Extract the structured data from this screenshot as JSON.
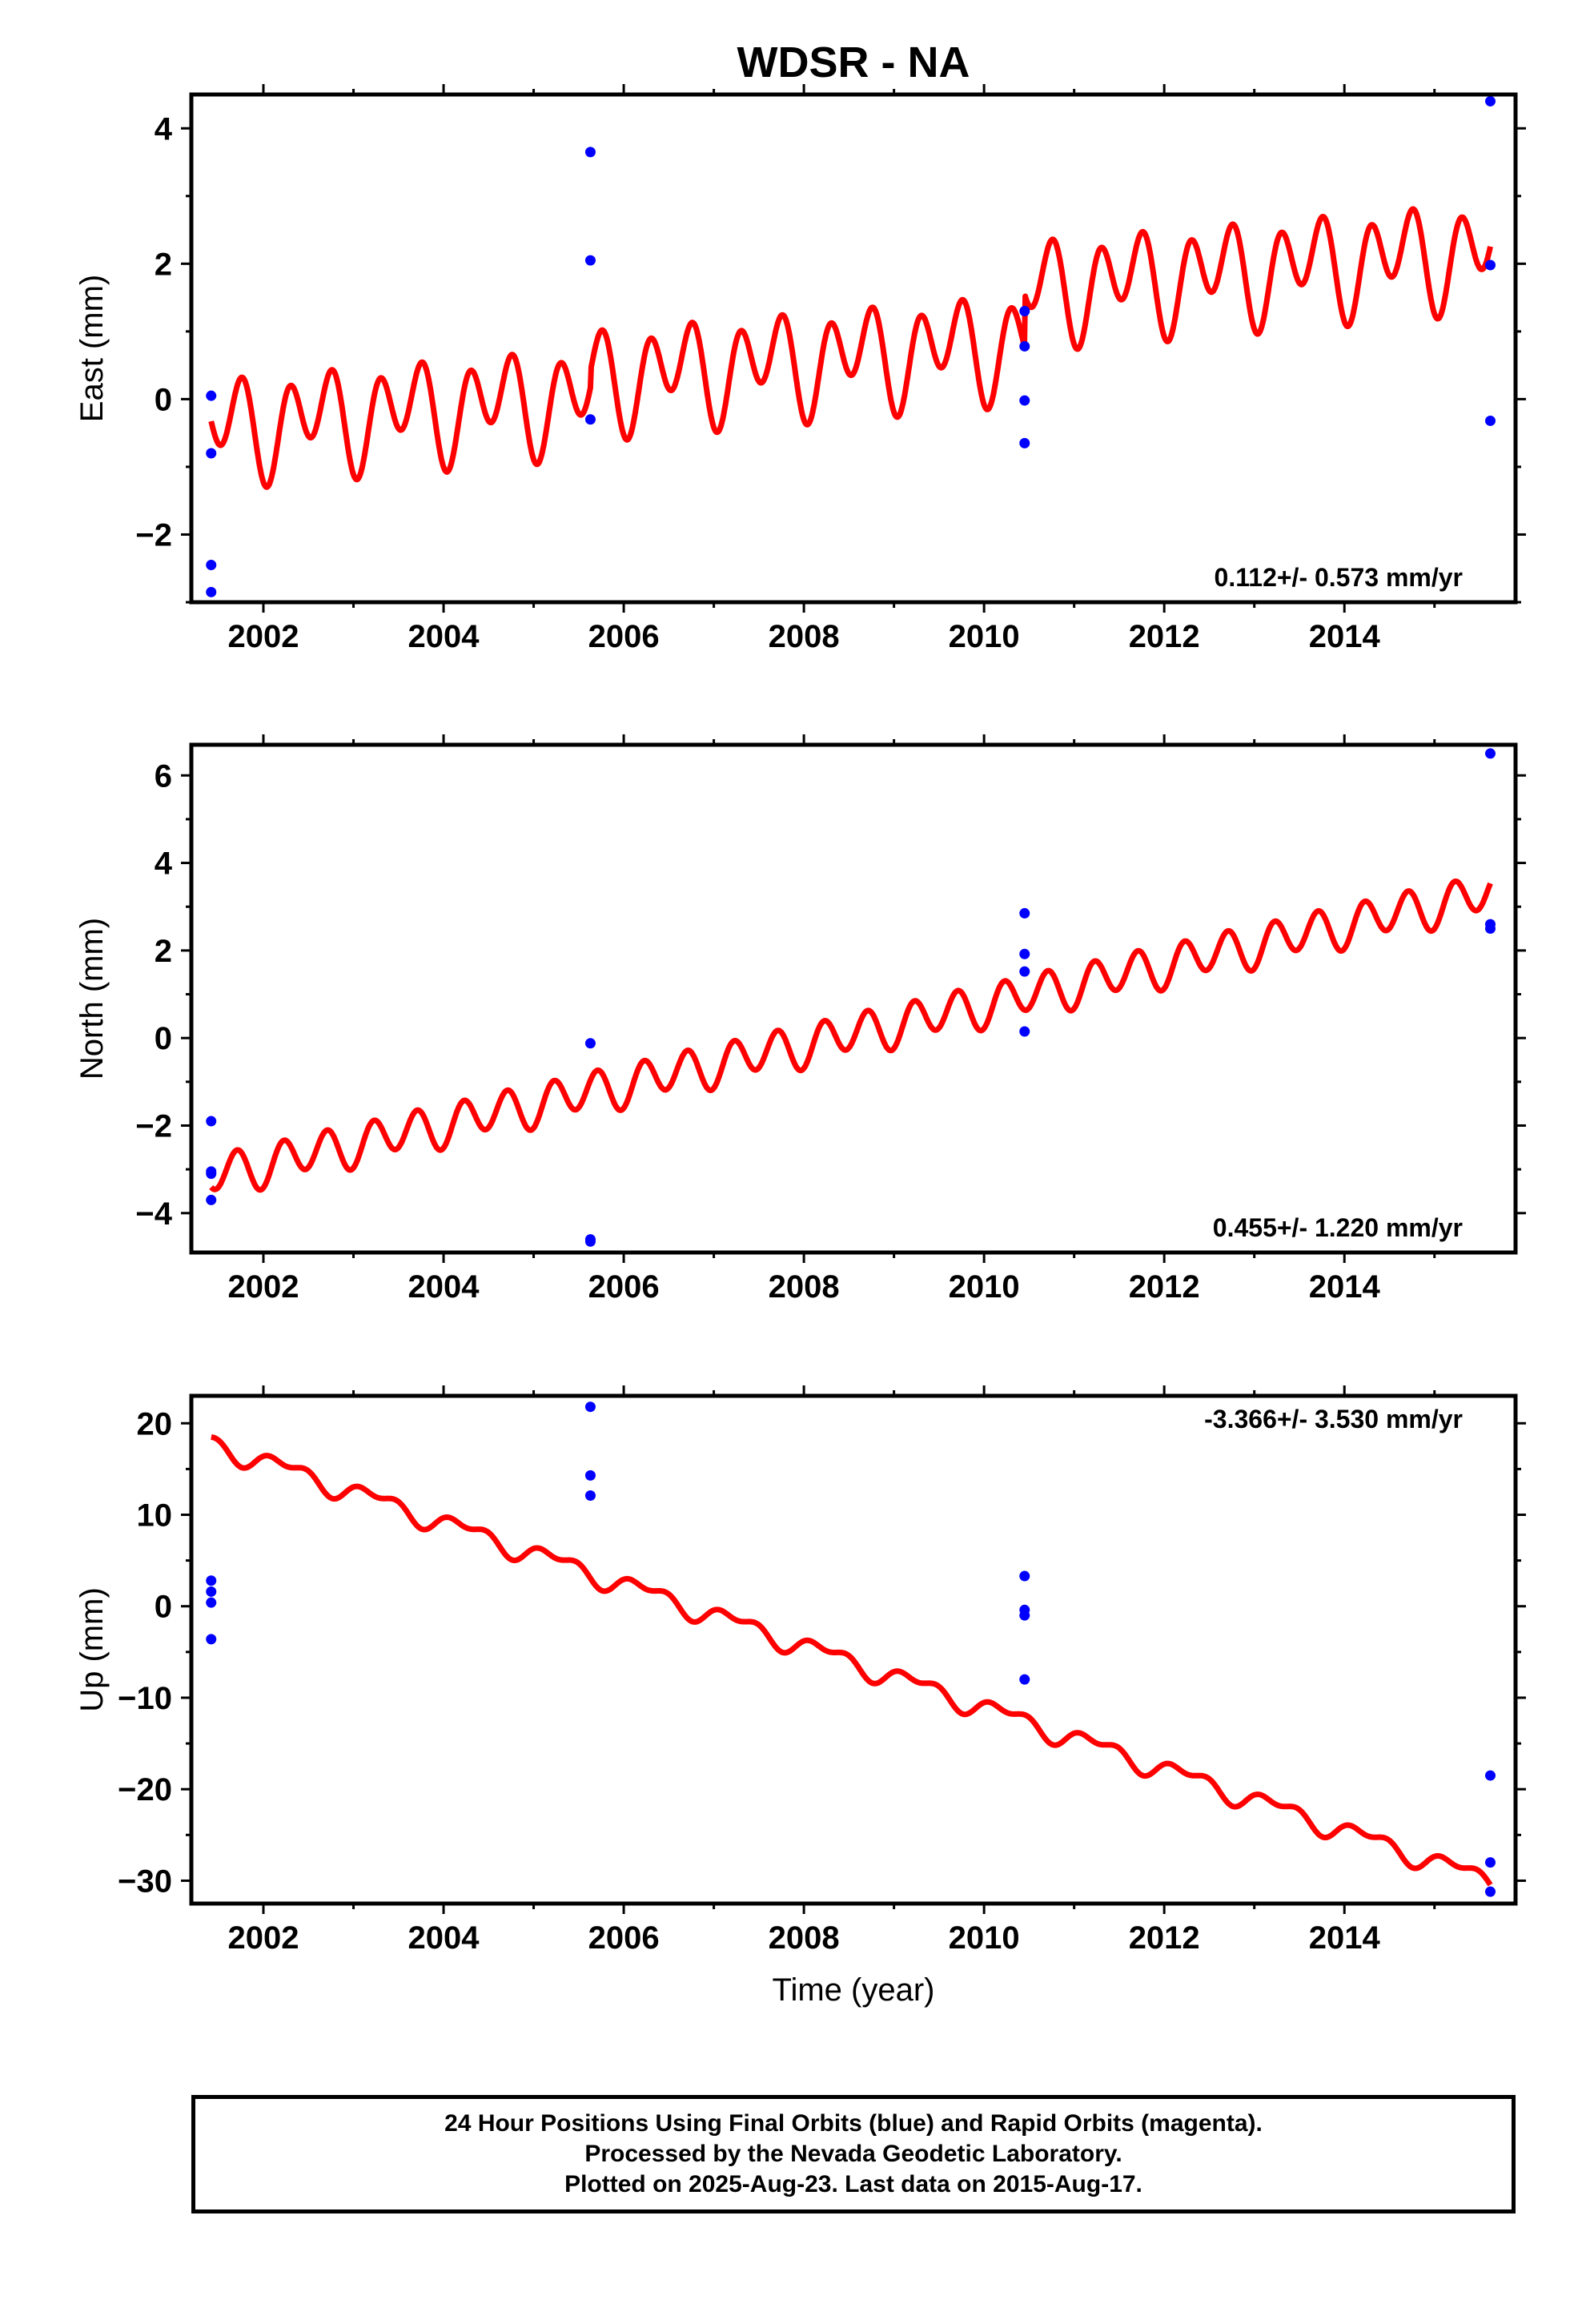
{
  "title": "WDSR - NA",
  "colors": {
    "model": "#ff0000",
    "final_points": "#0000ff",
    "axes": "#000000"
  },
  "x_axis": {
    "label": "Time (year)",
    "range": [
      2001.2,
      2015.9
    ],
    "ticks": [
      2002,
      2004,
      2006,
      2008,
      2010,
      2012,
      2014
    ],
    "tick_labels": [
      "2002",
      "2004",
      "2006",
      "2008",
      "2010",
      "2012",
      "2014"
    ]
  },
  "chart_data": [
    {
      "type": "scatter",
      "name": "east",
      "ylabel": "East (mm)",
      "ylim": [
        -3.0,
        4.5
      ],
      "yticks": [
        -2,
        0,
        2,
        4
      ],
      "ytick_labels": [
        "−2",
        "0",
        "2",
        "4"
      ],
      "rate_label": "0.112+/- 0.573 mm/yr",
      "rate_position": "bottom-right",
      "points": [
        {
          "x": 2001.42,
          "y": 0.05
        },
        {
          "x": 2001.42,
          "y": -0.8
        },
        {
          "x": 2001.42,
          "y": -2.45
        },
        {
          "x": 2001.42,
          "y": -2.85
        },
        {
          "x": 2005.63,
          "y": 3.65
        },
        {
          "x": 2005.63,
          "y": 2.05
        },
        {
          "x": 2005.63,
          "y": -0.3
        },
        {
          "x": 2010.45,
          "y": 1.3
        },
        {
          "x": 2010.45,
          "y": 0.78
        },
        {
          "x": 2010.45,
          "y": -0.02
        },
        {
          "x": 2010.45,
          "y": -0.65
        },
        {
          "x": 2015.62,
          "y": 4.4
        },
        {
          "x": 2015.62,
          "y": 1.98
        },
        {
          "x": 2015.62,
          "y": -0.32
        }
      ],
      "model": {
        "x_start": 2001.42,
        "x_end": 2015.62,
        "offset": -0.43,
        "slope": 0.112,
        "annual_amp": 0.35,
        "annual_phase": 0.6,
        "semiannual_amp": 0.6,
        "semiannual_phase": 3.3,
        "breaks": [
          {
            "at": 2005.63,
            "jump": 0.25
          },
          {
            "at": 2010.45,
            "jump": 0.78
          }
        ]
      }
    },
    {
      "type": "scatter",
      "name": "north",
      "ylabel": "North (mm)",
      "ylim": [
        -4.9,
        6.7
      ],
      "yticks": [
        -4,
        -2,
        0,
        2,
        4,
        6
      ],
      "ytick_labels": [
        "−4",
        "−2",
        "0",
        "2",
        "4",
        "6"
      ],
      "rate_label": "0.455+/- 1.220 mm/yr",
      "rate_position": "bottom-right",
      "points": [
        {
          "x": 2001.42,
          "y": -1.9
        },
        {
          "x": 2001.42,
          "y": -3.05
        },
        {
          "x": 2001.42,
          "y": -3.1
        },
        {
          "x": 2001.42,
          "y": -3.7
        },
        {
          "x": 2005.63,
          "y": -0.12
        },
        {
          "x": 2005.63,
          "y": -4.6
        },
        {
          "x": 2005.63,
          "y": -4.65
        },
        {
          "x": 2010.45,
          "y": 2.85
        },
        {
          "x": 2010.45,
          "y": 1.92
        },
        {
          "x": 2010.45,
          "y": 1.52
        },
        {
          "x": 2010.45,
          "y": 0.15
        },
        {
          "x": 2015.62,
          "y": 6.5
        },
        {
          "x": 2015.62,
          "y": 2.6
        },
        {
          "x": 2015.62,
          "y": 2.5
        }
      ],
      "model": {
        "x_start": 2001.42,
        "x_end": 2015.62,
        "offset": -3.15,
        "slope": 0.455,
        "annual_amp": 0.12,
        "annual_phase": 1.2,
        "semiannual_amp": 0.45,
        "semiannual_phase": 4.1,
        "breaks": []
      }
    },
    {
      "type": "scatter",
      "name": "up",
      "ylabel": "Up (mm)",
      "ylim": [
        -32.5,
        23.0
      ],
      "yticks": [
        -30,
        -20,
        -10,
        0,
        10,
        20
      ],
      "ytick_labels": [
        "−30",
        "−20",
        "−10",
        "0",
        "10",
        "20"
      ],
      "rate_label": "-3.366+/- 3.530 mm/yr",
      "rate_position": "top-right",
      "points": [
        {
          "x": 2001.42,
          "y": 2.8
        },
        {
          "x": 2001.42,
          "y": 1.6
        },
        {
          "x": 2001.42,
          "y": 0.4
        },
        {
          "x": 2001.42,
          "y": -3.6
        },
        {
          "x": 2005.63,
          "y": 21.8
        },
        {
          "x": 2005.63,
          "y": 14.3
        },
        {
          "x": 2005.63,
          "y": 12.1
        },
        {
          "x": 2010.45,
          "y": 3.3
        },
        {
          "x": 2010.45,
          "y": -0.4
        },
        {
          "x": 2010.45,
          "y": -1.0
        },
        {
          "x": 2010.45,
          "y": -8.0
        },
        {
          "x": 2015.62,
          "y": -18.5
        },
        {
          "x": 2015.62,
          "y": -28.0
        },
        {
          "x": 2015.62,
          "y": -31.2
        }
      ],
      "model": {
        "x_start": 2001.42,
        "x_end": 2015.62,
        "offset": 17.8,
        "slope": -3.366,
        "annual_amp": 0.9,
        "annual_phase": 2.6,
        "semiannual_amp": 0.6,
        "semiannual_phase": 0.4,
        "breaks": []
      }
    }
  ],
  "footer": {
    "line1": "24 Hour Positions Using Final Orbits (blue) and Rapid Orbits (magenta).",
    "line2": "Processed by the Nevada Geodetic Laboratory.",
    "line3": "Plotted on 2025-Aug-23. Last data on 2015-Aug-17."
  }
}
